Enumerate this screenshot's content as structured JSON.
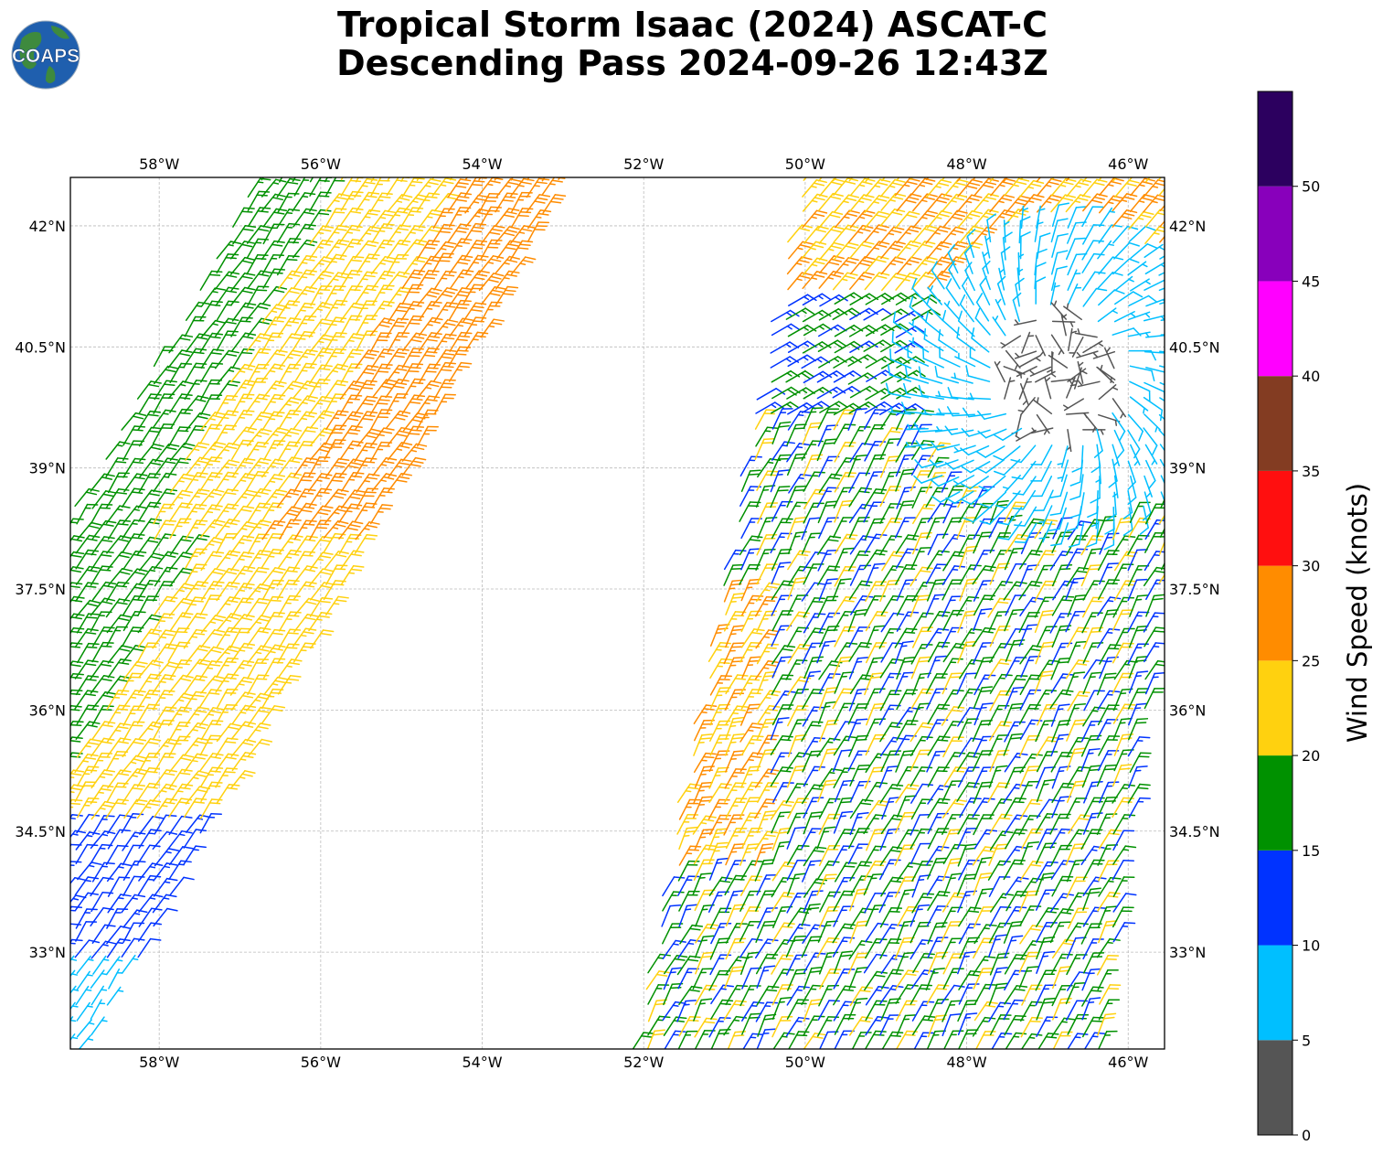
{
  "title": {
    "line1": "Tropical Storm Isaac (2024) ASCAT-C",
    "line2": "Descending Pass 2024-09-26 12:43Z"
  },
  "logo": {
    "text": "COAPS",
    "icon": "globe-logo-icon"
  },
  "map": {
    "lon_range": [
      -59.1,
      -45.55
    ],
    "lat_range": [
      31.8,
      42.6
    ],
    "grid": true,
    "lon_ticks": [
      {
        "value": -58,
        "label": "58°W"
      },
      {
        "value": -56,
        "label": "56°W"
      },
      {
        "value": -54,
        "label": "54°W"
      },
      {
        "value": -52,
        "label": "52°W"
      },
      {
        "value": -50,
        "label": "50°W"
      },
      {
        "value": -48,
        "label": "48°W"
      },
      {
        "value": -46,
        "label": "46°W"
      }
    ],
    "lat_ticks": [
      {
        "value": 42,
        "label": "42°N"
      },
      {
        "value": 40.5,
        "label": "40.5°N"
      },
      {
        "value": 39,
        "label": "39°N"
      },
      {
        "value": 37.5,
        "label": "37.5°N"
      },
      {
        "value": 36,
        "label": "36°N"
      },
      {
        "value": 34.5,
        "label": "34.5°N"
      },
      {
        "value": 33,
        "label": "33°N"
      }
    ]
  },
  "colorbar": {
    "label": "Wind Speed (knots)",
    "range": [
      0,
      55
    ],
    "ticks": [
      "0",
      "5",
      "10",
      "15",
      "20",
      "25",
      "30",
      "35",
      "40",
      "45",
      "50"
    ],
    "bins": [
      {
        "min": 0,
        "max": 5,
        "color": "#555555"
      },
      {
        "min": 5,
        "max": 10,
        "color": "#00bfff"
      },
      {
        "min": 10,
        "max": 15,
        "color": "#0033ff"
      },
      {
        "min": 15,
        "max": 20,
        "color": "#009100"
      },
      {
        "min": 20,
        "max": 25,
        "color": "#ffd10f"
      },
      {
        "min": 25,
        "max": 30,
        "color": "#ff8c00"
      },
      {
        "min": 30,
        "max": 35,
        "color": "#ff0f0f"
      },
      {
        "min": 35,
        "max": 40,
        "color": "#833c22"
      },
      {
        "min": 40,
        "max": 45,
        "color": "#ff00ff"
      },
      {
        "min": 45,
        "max": 50,
        "color": "#8800bb"
      },
      {
        "min": 50,
        "max": 55,
        "color": "#2c005f"
      }
    ]
  }
}
